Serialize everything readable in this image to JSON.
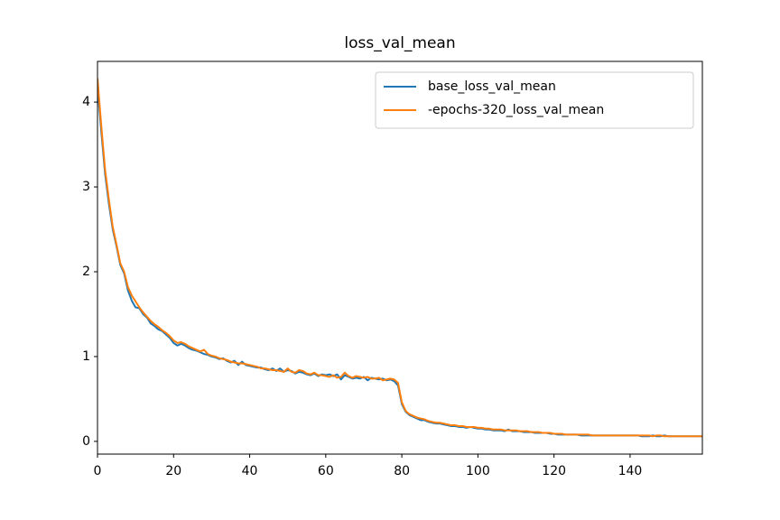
{
  "chart_data": {
    "type": "line",
    "title": "loss_val_mean",
    "x": [
      0,
      1,
      2,
      3,
      4,
      5,
      6,
      7,
      8,
      9,
      10,
      11,
      12,
      13,
      14,
      15,
      16,
      17,
      18,
      19,
      20,
      21,
      22,
      23,
      24,
      25,
      26,
      27,
      28,
      29,
      30,
      31,
      32,
      33,
      34,
      35,
      36,
      37,
      38,
      39,
      40,
      41,
      42,
      43,
      44,
      45,
      46,
      47,
      48,
      49,
      50,
      51,
      52,
      53,
      54,
      55,
      56,
      57,
      58,
      59,
      60,
      61,
      62,
      63,
      64,
      65,
      66,
      67,
      68,
      69,
      70,
      71,
      72,
      73,
      74,
      75,
      76,
      77,
      78,
      79,
      80,
      81,
      82,
      83,
      84,
      85,
      86,
      87,
      88,
      89,
      90,
      91,
      92,
      93,
      94,
      95,
      96,
      97,
      98,
      99,
      100,
      101,
      102,
      103,
      104,
      105,
      106,
      107,
      108,
      109,
      110,
      111,
      112,
      113,
      114,
      115,
      116,
      117,
      118,
      119,
      120,
      121,
      122,
      123,
      124,
      125,
      126,
      127,
      128,
      129,
      130,
      131,
      132,
      133,
      134,
      135,
      136,
      137,
      138,
      139,
      140,
      141,
      142,
      143,
      144,
      145,
      146,
      147,
      148,
      149,
      150,
      151,
      152,
      153,
      154,
      155,
      156,
      157,
      158,
      159
    ],
    "series": [
      {
        "name": "base_loss_val_mean",
        "color": "#1f77b4",
        "values": [
          4.2,
          3.65,
          3.15,
          2.8,
          2.5,
          2.3,
          2.08,
          1.98,
          1.78,
          1.66,
          1.58,
          1.57,
          1.5,
          1.46,
          1.39,
          1.36,
          1.32,
          1.3,
          1.26,
          1.22,
          1.16,
          1.13,
          1.15,
          1.13,
          1.1,
          1.08,
          1.07,
          1.05,
          1.03,
          1.02,
          1.0,
          0.99,
          0.97,
          0.98,
          0.95,
          0.93,
          0.95,
          0.9,
          0.94,
          0.9,
          0.89,
          0.88,
          0.87,
          0.87,
          0.85,
          0.84,
          0.86,
          0.83,
          0.86,
          0.82,
          0.84,
          0.83,
          0.8,
          0.82,
          0.81,
          0.79,
          0.78,
          0.8,
          0.77,
          0.79,
          0.78,
          0.79,
          0.77,
          0.79,
          0.73,
          0.78,
          0.76,
          0.74,
          0.75,
          0.74,
          0.76,
          0.72,
          0.75,
          0.74,
          0.73,
          0.74,
          0.72,
          0.73,
          0.71,
          0.66,
          0.44,
          0.35,
          0.31,
          0.29,
          0.27,
          0.25,
          0.25,
          0.23,
          0.22,
          0.21,
          0.21,
          0.2,
          0.19,
          0.18,
          0.18,
          0.17,
          0.17,
          0.16,
          0.17,
          0.16,
          0.15,
          0.15,
          0.14,
          0.14,
          0.13,
          0.13,
          0.13,
          0.12,
          0.14,
          0.12,
          0.12,
          0.12,
          0.11,
          0.11,
          0.11,
          0.1,
          0.1,
          0.1,
          0.1,
          0.09,
          0.09,
          0.08,
          0.08,
          0.08,
          0.08,
          0.08,
          0.08,
          0.07,
          0.07,
          0.07,
          0.07,
          0.07,
          0.07,
          0.07,
          0.07,
          0.07,
          0.07,
          0.07,
          0.07,
          0.07,
          0.07,
          0.07,
          0.07,
          0.06,
          0.06,
          0.06,
          0.07,
          0.06,
          0.06,
          0.07,
          0.06,
          0.06,
          0.06,
          0.06,
          0.06,
          0.06,
          0.06,
          0.06,
          0.06,
          0.06
        ]
      },
      {
        "name": "-epochs-320_loss_val_mean",
        "color": "#ff7f0e",
        "values": [
          4.28,
          3.72,
          3.2,
          2.85,
          2.53,
          2.32,
          2.1,
          2.0,
          1.82,
          1.72,
          1.65,
          1.58,
          1.52,
          1.47,
          1.42,
          1.38,
          1.35,
          1.31,
          1.28,
          1.24,
          1.19,
          1.16,
          1.17,
          1.15,
          1.12,
          1.1,
          1.08,
          1.06,
          1.08,
          1.03,
          1.01,
          1.0,
          0.98,
          0.97,
          0.96,
          0.94,
          0.93,
          0.92,
          0.92,
          0.91,
          0.9,
          0.89,
          0.88,
          0.86,
          0.86,
          0.85,
          0.84,
          0.84,
          0.83,
          0.82,
          0.86,
          0.82,
          0.81,
          0.84,
          0.83,
          0.8,
          0.79,
          0.81,
          0.78,
          0.78,
          0.77,
          0.76,
          0.78,
          0.75,
          0.76,
          0.81,
          0.77,
          0.75,
          0.77,
          0.76,
          0.75,
          0.76,
          0.74,
          0.74,
          0.75,
          0.72,
          0.73,
          0.74,
          0.73,
          0.69,
          0.46,
          0.36,
          0.32,
          0.3,
          0.28,
          0.27,
          0.26,
          0.24,
          0.23,
          0.22,
          0.22,
          0.21,
          0.2,
          0.19,
          0.19,
          0.18,
          0.18,
          0.17,
          0.17,
          0.17,
          0.16,
          0.16,
          0.15,
          0.15,
          0.14,
          0.14,
          0.14,
          0.13,
          0.13,
          0.13,
          0.13,
          0.12,
          0.12,
          0.12,
          0.11,
          0.11,
          0.11,
          0.1,
          0.1,
          0.1,
          0.09,
          0.09,
          0.09,
          0.08,
          0.08,
          0.08,
          0.08,
          0.08,
          0.08,
          0.08,
          0.07,
          0.07,
          0.07,
          0.07,
          0.07,
          0.07,
          0.07,
          0.07,
          0.07,
          0.07,
          0.07,
          0.07,
          0.07,
          0.07,
          0.07,
          0.07,
          0.06,
          0.07,
          0.07,
          0.06,
          0.06,
          0.06,
          0.06,
          0.06,
          0.06,
          0.06,
          0.06,
          0.06,
          0.06,
          0.06
        ]
      }
    ],
    "xlim": [
      0,
      159
    ],
    "xticks": [
      0,
      20,
      40,
      60,
      80,
      100,
      120,
      140
    ],
    "ylim": [
      -0.15,
      4.48
    ],
    "yticks": [
      0,
      1,
      2,
      3,
      4
    ],
    "grid": false,
    "legend": "upper right"
  }
}
